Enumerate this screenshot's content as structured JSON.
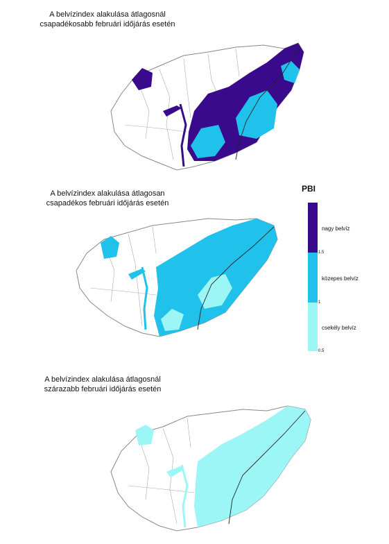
{
  "maps": [
    {
      "title_line1": "A belvízindex alakulása átlagosnál",
      "title_line2": "csapadékosabb februári időjárás esetén"
    },
    {
      "title_line1": "A belvízindex alakulása átlagosan",
      "title_line2": "csapadékos februári időjárás esetén"
    },
    {
      "title_line1": "A belvízindex alakulása átlagosnál",
      "title_line2": "szárazabb februári időjárás esetén"
    }
  ],
  "legend": {
    "title": "PBI",
    "classes": [
      {
        "label": "nagy belvíz",
        "color": "#3a0a8c"
      },
      {
        "label": "közepes belvíz",
        "color": "#20c2ec"
      },
      {
        "label": "csekély belvíz",
        "color": "#9df6f6"
      }
    ],
    "ticks": [
      "1.5",
      "1",
      "0.5"
    ]
  },
  "colors": {
    "outline": "#888888",
    "river": "#222222"
  }
}
